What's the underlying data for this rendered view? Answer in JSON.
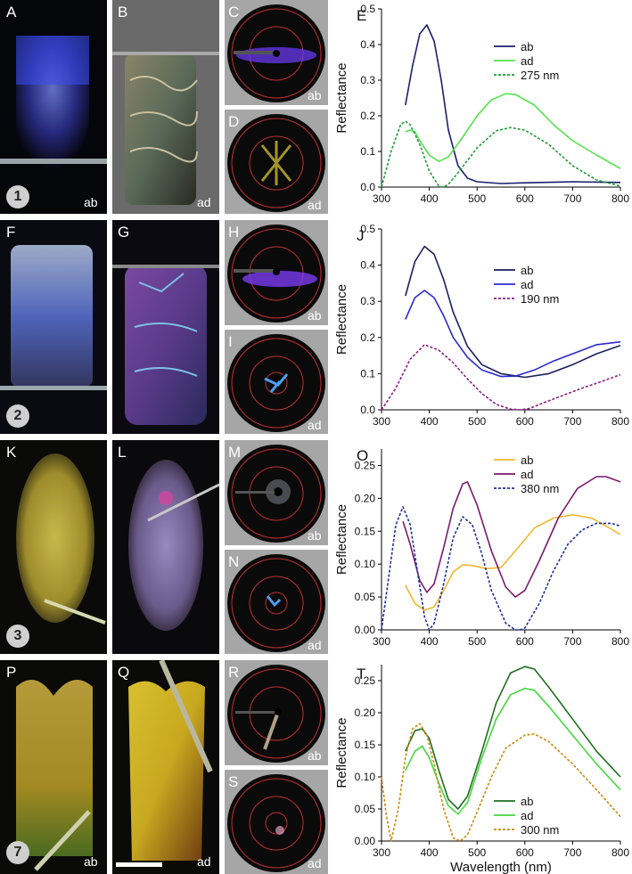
{
  "rows": [
    {
      "number": "1",
      "photos": {
        "ab": {
          "letter": "A",
          "tag": "ab"
        },
        "ad": {
          "letter": "B",
          "tag": "ad"
        },
        "scatter_ab": {
          "letter": "C",
          "tag": "ab"
        },
        "scatter_ad": {
          "letter": "D",
          "tag": "ad"
        }
      }
    },
    {
      "number": "2",
      "photos": {
        "ab": {
          "letter": "F",
          "tag": ""
        },
        "ad": {
          "letter": "G",
          "tag": ""
        },
        "scatter_ab": {
          "letter": "H",
          "tag": "ab"
        },
        "scatter_ad": {
          "letter": "I",
          "tag": "ad"
        }
      }
    },
    {
      "number": "3",
      "photos": {
        "ab": {
          "letter": "K",
          "tag": ""
        },
        "ad": {
          "letter": "L",
          "tag": ""
        },
        "scatter_ab": {
          "letter": "M",
          "tag": "ab"
        },
        "scatter_ad": {
          "letter": "N",
          "tag": "ad"
        }
      }
    },
    {
      "number": "7",
      "photos": {
        "ab": {
          "letter": "P",
          "tag": "ab"
        },
        "ad": {
          "letter": "Q",
          "tag": "ad"
        },
        "scatter_ab": {
          "letter": "R",
          "tag": "ab"
        },
        "scatter_ad": {
          "letter": "S",
          "tag": "ad"
        }
      }
    }
  ],
  "chart_data": [
    {
      "panel": "E",
      "type": "line",
      "xlabel": "",
      "ylabel": "Reflectance",
      "xlim": [
        300,
        800
      ],
      "ylim": [
        0,
        0.5
      ],
      "xticks": [
        "300",
        "400",
        "500",
        "600",
        "700",
        "800"
      ],
      "yticks": [
        "0.0",
        "0.1",
        "0.2",
        "0.3",
        "0.4",
        "0.5"
      ],
      "legend_position": "top-right",
      "series": [
        {
          "name": "ab",
          "color": "#1a1f6e",
          "dashed": false,
          "x": [
            350,
            365,
            380,
            395,
            410,
            425,
            440,
            460,
            480,
            500,
            550,
            600,
            700,
            800
          ],
          "y": [
            0.23,
            0.34,
            0.43,
            0.455,
            0.41,
            0.3,
            0.16,
            0.06,
            0.025,
            0.015,
            0.01,
            0.012,
            0.015,
            0.013
          ]
        },
        {
          "name": "ad",
          "color": "#53e34c",
          "dashed": false,
          "x": [
            350,
            360,
            370,
            380,
            400,
            420,
            440,
            470,
            500,
            530,
            560,
            580,
            620,
            660,
            700,
            750,
            800
          ],
          "y": [
            0.155,
            0.16,
            0.155,
            0.13,
            0.09,
            0.072,
            0.085,
            0.14,
            0.2,
            0.245,
            0.262,
            0.26,
            0.23,
            0.175,
            0.13,
            0.09,
            0.052
          ]
        },
        {
          "name": "275 nm",
          "color": "#1f9a37",
          "dashed": true,
          "x": [
            300,
            320,
            340,
            350,
            360,
            380,
            400,
            420,
            430,
            440,
            460,
            500,
            540,
            570,
            600,
            650,
            700,
            750,
            800
          ],
          "y": [
            0.0,
            0.1,
            0.175,
            0.185,
            0.175,
            0.12,
            0.045,
            0.003,
            0.0,
            0.008,
            0.04,
            0.11,
            0.158,
            0.167,
            0.16,
            0.12,
            0.06,
            0.02,
            0.003
          ]
        }
      ]
    },
    {
      "panel": "J",
      "type": "line",
      "xlabel": "",
      "ylabel": "Reflectance",
      "xlim": [
        300,
        800
      ],
      "ylim": [
        0,
        0.5
      ],
      "xticks": [
        "300",
        "400",
        "500",
        "600",
        "700",
        "800"
      ],
      "yticks": [
        "0.0",
        "0.1",
        "0.2",
        "0.3",
        "0.4",
        "0.5"
      ],
      "legend_position": "top-right",
      "series": [
        {
          "name": "ab",
          "color": "#1a1f5e",
          "dashed": false,
          "x": [
            350,
            370,
            390,
            410,
            430,
            450,
            480,
            510,
            550,
            600,
            650,
            700,
            750,
            800
          ],
          "y": [
            0.315,
            0.41,
            0.452,
            0.43,
            0.36,
            0.27,
            0.175,
            0.125,
            0.1,
            0.09,
            0.1,
            0.125,
            0.155,
            0.178
          ]
        },
        {
          "name": "ad",
          "color": "#2b2bd0",
          "dashed": false,
          "x": [
            350,
            370,
            390,
            410,
            430,
            450,
            480,
            510,
            550,
            580,
            620,
            660,
            700,
            750,
            800
          ],
          "y": [
            0.25,
            0.31,
            0.33,
            0.31,
            0.26,
            0.2,
            0.145,
            0.11,
            0.092,
            0.093,
            0.11,
            0.135,
            0.155,
            0.18,
            0.188
          ]
        },
        {
          "name": "190 nm",
          "color": "#8a1c86",
          "dashed": true,
          "x": [
            300,
            330,
            360,
            390,
            420,
            450,
            480,
            510,
            540,
            570,
            590,
            610,
            640,
            680,
            720,
            760,
            800
          ],
          "y": [
            0.0,
            0.06,
            0.14,
            0.18,
            0.165,
            0.13,
            0.085,
            0.045,
            0.015,
            0.002,
            0.0,
            0.004,
            0.02,
            0.04,
            0.06,
            0.078,
            0.097
          ]
        }
      ]
    },
    {
      "panel": "O",
      "type": "line",
      "xlabel": "",
      "ylabel": "Reflectance",
      "xlim": [
        300,
        800
      ],
      "ylim": [
        0,
        0.275
      ],
      "xticks": [
        "300",
        "400",
        "500",
        "600",
        "700",
        "800"
      ],
      "yticks": [
        "0.00",
        "0.05",
        "0.10",
        "0.15",
        "0.20",
        "0.25"
      ],
      "legend_position": "top-right",
      "series": [
        {
          "name": "ab",
          "color": "#f0b830",
          "dashed": false,
          "x": [
            350,
            370,
            390,
            410,
            430,
            450,
            470,
            490,
            520,
            550,
            580,
            620,
            660,
            700,
            740,
            770,
            800
          ],
          "y": [
            0.068,
            0.04,
            0.03,
            0.035,
            0.06,
            0.088,
            0.099,
            0.098,
            0.093,
            0.095,
            0.12,
            0.155,
            0.17,
            0.175,
            0.17,
            0.158,
            0.145
          ]
        },
        {
          "name": "ad",
          "color": "#7b1a6e",
          "dashed": false,
          "x": [
            345,
            360,
            380,
            395,
            410,
            430,
            450,
            470,
            480,
            500,
            530,
            560,
            580,
            600,
            630,
            670,
            710,
            750,
            770,
            800
          ],
          "y": [
            0.165,
            0.13,
            0.075,
            0.057,
            0.07,
            0.125,
            0.185,
            0.222,
            0.225,
            0.19,
            0.12,
            0.065,
            0.05,
            0.06,
            0.105,
            0.17,
            0.215,
            0.233,
            0.233,
            0.225
          ]
        },
        {
          "name": "380 nm",
          "color": "#1e2f9a",
          "dashed": true,
          "x": [
            300,
            315,
            330,
            345,
            360,
            375,
            390,
            400,
            410,
            430,
            450,
            470,
            490,
            510,
            530,
            560,
            580,
            590,
            600,
            630,
            660,
            690,
            720,
            750,
            780,
            800
          ],
          "y": [
            0.0,
            0.08,
            0.16,
            0.187,
            0.16,
            0.09,
            0.02,
            0.0,
            0.01,
            0.07,
            0.14,
            0.172,
            0.16,
            0.115,
            0.06,
            0.01,
            0.0,
            0.0,
            0.003,
            0.04,
            0.09,
            0.13,
            0.152,
            0.162,
            0.162,
            0.158
          ]
        }
      ]
    },
    {
      "panel": "T",
      "type": "line",
      "xlabel": "Wavelength (nm)",
      "ylabel": "Reflectance",
      "xlim": [
        300,
        800
      ],
      "ylim": [
        0,
        0.275
      ],
      "xticks": [
        "300",
        "400",
        "500",
        "600",
        "700",
        "800"
      ],
      "yticks": [
        "0.00",
        "0.05",
        "0.10",
        "0.15",
        "0.20",
        "0.25"
      ],
      "legend_position": "bottom-right",
      "series": [
        {
          "name": "ab",
          "color": "#1e6e1e",
          "dashed": false,
          "x": [
            350,
            370,
            385,
            400,
            420,
            440,
            460,
            480,
            510,
            540,
            570,
            600,
            620,
            650,
            700,
            750,
            800
          ],
          "y": [
            0.14,
            0.172,
            0.175,
            0.16,
            0.11,
            0.065,
            0.05,
            0.07,
            0.14,
            0.215,
            0.262,
            0.272,
            0.268,
            0.24,
            0.19,
            0.14,
            0.1
          ]
        },
        {
          "name": "ad",
          "color": "#45d83f",
          "dashed": false,
          "x": [
            350,
            370,
            385,
            400,
            420,
            440,
            460,
            480,
            510,
            540,
            570,
            600,
            620,
            650,
            700,
            750,
            800
          ],
          "y": [
            0.11,
            0.14,
            0.148,
            0.13,
            0.09,
            0.055,
            0.042,
            0.06,
            0.13,
            0.19,
            0.228,
            0.238,
            0.235,
            0.21,
            0.165,
            0.12,
            0.08
          ]
        },
        {
          "name": "300 nm",
          "color": "#c98a10",
          "dashed": true,
          "x": [
            300,
            310,
            320,
            335,
            350,
            365,
            380,
            395,
            410,
            430,
            450,
            465,
            480,
            500,
            530,
            560,
            600,
            620,
            650,
            700,
            750,
            800
          ],
          "y": [
            0.1,
            0.04,
            0.0,
            0.05,
            0.13,
            0.175,
            0.183,
            0.165,
            0.12,
            0.05,
            0.005,
            0.0,
            0.01,
            0.045,
            0.1,
            0.145,
            0.165,
            0.167,
            0.155,
            0.12,
            0.08,
            0.038
          ]
        }
      ]
    }
  ]
}
